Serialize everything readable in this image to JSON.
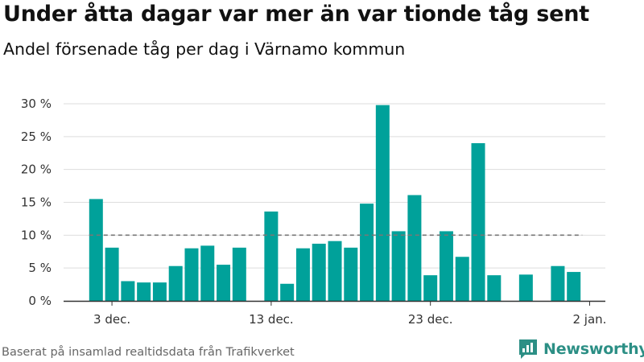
{
  "header": {
    "title": "Under åtta dagar var mer än var tionde tåg sent",
    "subtitle": "Andel försenade tåg per dag i Värnamo kommun"
  },
  "footer": {
    "source": "Baserat på insamlad realtidsdata från Trafikverket",
    "brand": "Newsworthy"
  },
  "colors": {
    "bar": "#00A19A",
    "reference_line": "#777777",
    "grid": "#dddddd",
    "brand": "#2c8f85"
  },
  "chart_data": {
    "type": "bar",
    "title": "Under åtta dagar var mer än var tionde tåg sent",
    "subtitle": "Andel försenade tåg per dag i Värnamo kommun",
    "x": [
      "2023-12-02",
      "2023-12-03",
      "2023-12-04",
      "2023-12-05",
      "2023-12-06",
      "2023-12-07",
      "2023-12-08",
      "2023-12-09",
      "2023-12-10",
      "2023-12-11",
      "2023-12-12",
      "2023-12-13",
      "2023-12-14",
      "2023-12-15",
      "2023-12-16",
      "2023-12-17",
      "2023-12-18",
      "2023-12-19",
      "2023-12-20",
      "2023-12-21",
      "2023-12-22",
      "2023-12-23",
      "2023-12-24",
      "2023-12-25",
      "2023-12-26",
      "2023-12-27",
      "2023-12-28",
      "2023-12-29",
      "2023-12-30",
      "2023-12-31",
      "2024-01-01"
    ],
    "values": [
      15.5,
      8.1,
      3.0,
      2.8,
      2.8,
      5.3,
      8.0,
      8.4,
      5.5,
      8.1,
      null,
      13.6,
      2.6,
      8.0,
      8.7,
      9.1,
      8.1,
      14.8,
      29.8,
      10.6,
      16.1,
      3.9,
      10.6,
      6.7,
      24.0,
      3.9,
      null,
      4.0,
      null,
      5.3,
      4.4
    ],
    "reference_line": 10,
    "xlabel": "",
    "ylabel": "",
    "ylim": [
      0,
      30
    ],
    "y_ticks": [
      "0 %",
      "5 %",
      "10 %",
      "15 %",
      "20 %",
      "25 %",
      "30 %"
    ],
    "y_tick_values": [
      0,
      5,
      10,
      15,
      20,
      25,
      30
    ],
    "x_tick_labels": [
      "3 dec.",
      "13 dec.",
      "23 dec.",
      "2 jan."
    ],
    "x_tick_indices": [
      1,
      11,
      21,
      31
    ],
    "grid": true
  }
}
